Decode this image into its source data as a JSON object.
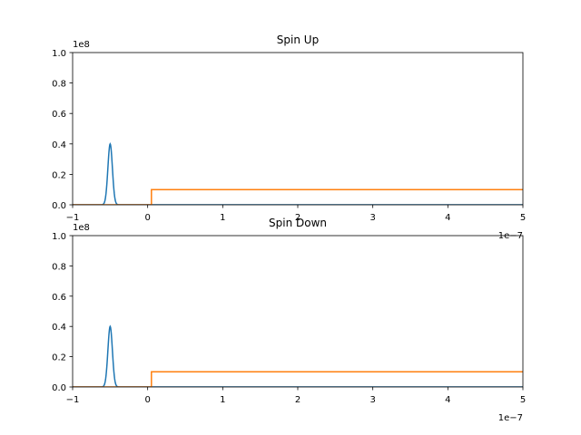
{
  "chart_data": [
    {
      "type": "line",
      "title": "Spin Up",
      "xlabel": "",
      "ylabel": "",
      "xlim": [
        -1e-07,
        5e-07
      ],
      "ylim": [
        0,
        100000000.0
      ],
      "x_ticks": [
        "−1",
        "0",
        "1",
        "2",
        "3",
        "4",
        "5"
      ],
      "x_tick_values": [
        -1e-07,
        0,
        1e-07,
        2e-07,
        3e-07,
        4e-07,
        5e-07
      ],
      "y_ticks": [
        "0.0",
        "0.2",
        "0.4",
        "0.6",
        "0.8",
        "1.0"
      ],
      "y_tick_values": [
        0,
        20000000.0,
        40000000.0,
        60000000.0,
        80000000.0,
        100000000.0
      ],
      "x_offset_label": "1e−7",
      "y_offset_label": "1e8",
      "grid": false,
      "series": [
        {
          "color": "#1f77b4",
          "shape": "gaussian",
          "center": -5e-08,
          "sigma": 3e-09,
          "amplitude": 40000000.0
        },
        {
          "color": "#ff7f0e",
          "shape": "step",
          "step_at": 5e-09,
          "low": 0,
          "high": 10000000.0
        }
      ]
    },
    {
      "type": "line",
      "title": "Spin Down",
      "xlabel": "",
      "ylabel": "",
      "xlim": [
        -1e-07,
        5e-07
      ],
      "ylim": [
        0,
        100000000.0
      ],
      "x_ticks": [
        "−1",
        "0",
        "1",
        "2",
        "3",
        "4",
        "5"
      ],
      "x_tick_values": [
        -1e-07,
        0,
        1e-07,
        2e-07,
        3e-07,
        4e-07,
        5e-07
      ],
      "y_ticks": [
        "0.0",
        "0.2",
        "0.4",
        "0.6",
        "0.8",
        "1.0"
      ],
      "y_tick_values": [
        0,
        20000000.0,
        40000000.0,
        60000000.0,
        80000000.0,
        100000000.0
      ],
      "x_offset_label": "1e−7",
      "y_offset_label": "1e8",
      "grid": false,
      "series": [
        {
          "color": "#1f77b4",
          "shape": "gaussian",
          "center": -5e-08,
          "sigma": 3e-09,
          "amplitude": 40000000.0
        },
        {
          "color": "#ff7f0e",
          "shape": "step",
          "step_at": 5e-09,
          "low": 0,
          "high": 10000000.0
        }
      ]
    }
  ]
}
